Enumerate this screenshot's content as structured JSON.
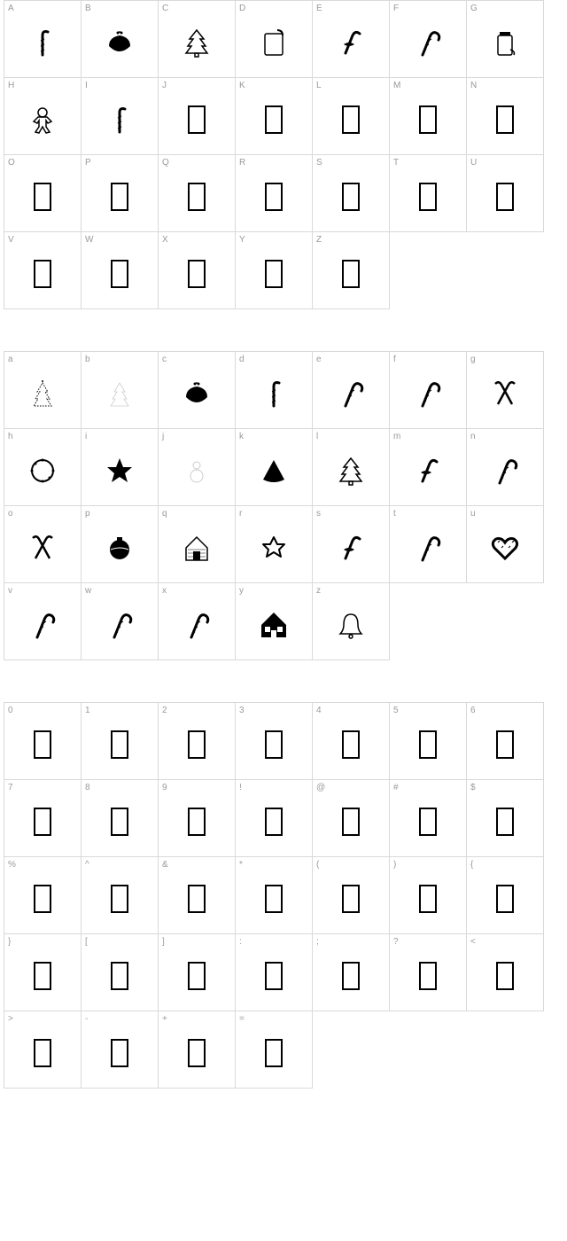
{
  "layout": {
    "cell_size": 88,
    "columns": 7,
    "section_gap": 48,
    "border_color": "#d9d9d9",
    "label_color": "#999999",
    "label_fontsize": 10,
    "glyph_color": "#000000",
    "background": "#ffffff"
  },
  "sections": [
    {
      "name": "uppercase",
      "cells": [
        {
          "label": "A",
          "glyph": "candy-vertical"
        },
        {
          "label": "B",
          "glyph": "pudding"
        },
        {
          "label": "C",
          "glyph": "tree-outline"
        },
        {
          "label": "D",
          "glyph": "sign"
        },
        {
          "label": "E",
          "glyph": "candy-ribbon"
        },
        {
          "label": "F",
          "glyph": "candy-cane"
        },
        {
          "label": "G",
          "glyph": "jar"
        },
        {
          "label": "H",
          "glyph": "gingerbread"
        },
        {
          "label": "I",
          "glyph": "candy-vertical"
        },
        {
          "label": "J",
          "glyph": "empty"
        },
        {
          "label": "K",
          "glyph": "empty"
        },
        {
          "label": "L",
          "glyph": "empty"
        },
        {
          "label": "M",
          "glyph": "empty"
        },
        {
          "label": "N",
          "glyph": "empty"
        },
        {
          "label": "O",
          "glyph": "empty"
        },
        {
          "label": "P",
          "glyph": "empty"
        },
        {
          "label": "Q",
          "glyph": "empty"
        },
        {
          "label": "R",
          "glyph": "empty"
        },
        {
          "label": "S",
          "glyph": "empty"
        },
        {
          "label": "T",
          "glyph": "empty"
        },
        {
          "label": "U",
          "glyph": "empty"
        },
        {
          "label": "V",
          "glyph": "empty"
        },
        {
          "label": "W",
          "glyph": "empty"
        },
        {
          "label": "X",
          "glyph": "empty"
        },
        {
          "label": "Y",
          "glyph": "empty"
        },
        {
          "label": "Z",
          "glyph": "empty"
        }
      ]
    },
    {
      "name": "lowercase",
      "cells": [
        {
          "label": "a",
          "glyph": "tree-dotted"
        },
        {
          "label": "b",
          "glyph": "tree-light"
        },
        {
          "label": "c",
          "glyph": "pudding"
        },
        {
          "label": "d",
          "glyph": "candy-vertical"
        },
        {
          "label": "e",
          "glyph": "candy-cane"
        },
        {
          "label": "f",
          "glyph": "candy-cane"
        },
        {
          "label": "g",
          "glyph": "candy-cross"
        },
        {
          "label": "h",
          "glyph": "wreath"
        },
        {
          "label": "i",
          "glyph": "star"
        },
        {
          "label": "j",
          "glyph": "snowman-light"
        },
        {
          "label": "k",
          "glyph": "triangle"
        },
        {
          "label": "l",
          "glyph": "tree-outline"
        },
        {
          "label": "m",
          "glyph": "candy-ribbon"
        },
        {
          "label": "n",
          "glyph": "candy-cane"
        },
        {
          "label": "o",
          "glyph": "candy-cross"
        },
        {
          "label": "p",
          "glyph": "ornament"
        },
        {
          "label": "q",
          "glyph": "house"
        },
        {
          "label": "r",
          "glyph": "star-outline"
        },
        {
          "label": "s",
          "glyph": "candy-ribbon"
        },
        {
          "label": "t",
          "glyph": "candy-cane"
        },
        {
          "label": "u",
          "glyph": "heart"
        },
        {
          "label": "v",
          "glyph": "candy-cane"
        },
        {
          "label": "w",
          "glyph": "candy-cane"
        },
        {
          "label": "x",
          "glyph": "candy-cane"
        },
        {
          "label": "y",
          "glyph": "house-detailed"
        },
        {
          "label": "z",
          "glyph": "bell"
        }
      ]
    },
    {
      "name": "numbers-symbols",
      "cells": [
        {
          "label": "0",
          "glyph": "empty"
        },
        {
          "label": "1",
          "glyph": "empty"
        },
        {
          "label": "2",
          "glyph": "empty"
        },
        {
          "label": "3",
          "glyph": "empty"
        },
        {
          "label": "4",
          "glyph": "empty"
        },
        {
          "label": "5",
          "glyph": "empty"
        },
        {
          "label": "6",
          "glyph": "empty"
        },
        {
          "label": "7",
          "glyph": "empty"
        },
        {
          "label": "8",
          "glyph": "empty"
        },
        {
          "label": "9",
          "glyph": "empty"
        },
        {
          "label": "!",
          "glyph": "empty"
        },
        {
          "label": "@",
          "glyph": "empty"
        },
        {
          "label": "#",
          "glyph": "empty"
        },
        {
          "label": "$",
          "glyph": "empty"
        },
        {
          "label": "%",
          "glyph": "empty"
        },
        {
          "label": "^",
          "glyph": "empty"
        },
        {
          "label": "&",
          "glyph": "empty"
        },
        {
          "label": "*",
          "glyph": "empty"
        },
        {
          "label": "(",
          "glyph": "empty"
        },
        {
          "label": ")",
          "glyph": "empty"
        },
        {
          "label": "{",
          "glyph": "empty"
        },
        {
          "label": "}",
          "glyph": "empty"
        },
        {
          "label": "[",
          "glyph": "empty"
        },
        {
          "label": "]",
          "glyph": "empty"
        },
        {
          "label": ":",
          "glyph": "empty"
        },
        {
          "label": ";",
          "glyph": "empty"
        },
        {
          "label": "?",
          "glyph": "empty"
        },
        {
          "label": "<",
          "glyph": "empty"
        },
        {
          "label": ">",
          "glyph": "empty"
        },
        {
          "label": "-",
          "glyph": "empty"
        },
        {
          "label": "+",
          "glyph": "empty"
        },
        {
          "label": "=",
          "glyph": "empty"
        }
      ]
    }
  ]
}
